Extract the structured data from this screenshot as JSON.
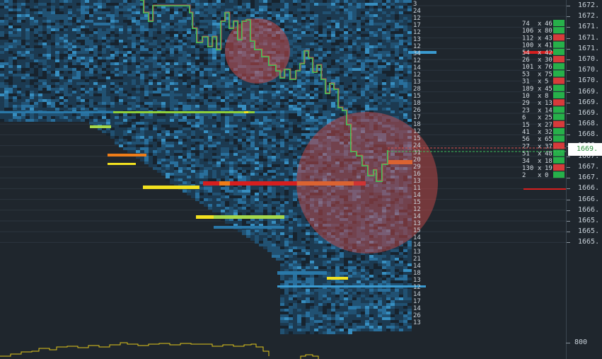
{
  "price_axis": {
    "labels": [
      "1672.",
      "1672.",
      "1671.",
      "1671.",
      "1671.",
      "1670.",
      "1670.",
      "1670.",
      "1669.",
      "1669.",
      "1669.",
      "1668.",
      "1668.",
      "1668.",
      "1667.",
      "1667.",
      "1667.",
      "1666.",
      "1666.",
      "1666.",
      "1665.",
      "1665.",
      "1665."
    ],
    "last_price": "1669.",
    "volume_label": "800"
  },
  "ladder": {
    "rows": [
      {
        "ask": "74",
        "x": "x",
        "bid": "46"
      },
      {
        "ask": "106",
        "x": "x",
        "bid": "80"
      },
      {
        "ask": "112",
        "x": "x",
        "bid": "43"
      },
      {
        "ask": "100",
        "x": "x",
        "bid": "41"
      },
      {
        "ask": "54",
        "x": "x",
        "bid": "42"
      },
      {
        "ask": "26",
        "x": "x",
        "bid": "30"
      },
      {
        "ask": "101",
        "x": "x",
        "bid": "76"
      },
      {
        "ask": "53",
        "x": "x",
        "bid": "75"
      },
      {
        "ask": "31",
        "x": "x",
        "bid": "5"
      },
      {
        "ask": "189",
        "x": "x",
        "bid": "45"
      },
      {
        "ask": "10",
        "x": "x",
        "bid": "8"
      },
      {
        "ask": "29",
        "x": "x",
        "bid": "13"
      },
      {
        "ask": "23",
        "x": "x",
        "bid": "14"
      },
      {
        "ask": "6",
        "x": "x",
        "bid": "25"
      },
      {
        "ask": "15",
        "x": "x",
        "bid": "27"
      },
      {
        "ask": "41",
        "x": "x",
        "bid": "32"
      },
      {
        "ask": "56",
        "x": "x",
        "bid": "65"
      },
      {
        "ask": "27",
        "x": "x",
        "bid": "37"
      },
      {
        "ask": "51",
        "x": "x",
        "bid": "48"
      },
      {
        "ask": "34",
        "x": "x",
        "bid": "18"
      },
      {
        "ask": "130",
        "x": "x",
        "bid": "19"
      },
      {
        "ask": "2",
        "x": "x",
        "bid": "0"
      }
    ]
  },
  "depth_column": {
    "values": [
      "3",
      "24",
      "12",
      "17",
      "12",
      "13",
      "12",
      "34",
      "12",
      "14",
      "12",
      "13",
      "28",
      "15",
      "18",
      "26",
      "17",
      "18",
      "12",
      "15",
      "24",
      "31",
      "20",
      "29",
      "16",
      "13",
      "11",
      "14",
      "15",
      "12",
      "14",
      "13",
      "15",
      "14",
      "14",
      "13",
      "21",
      "14",
      "18",
      "13",
      "12",
      "14",
      "17",
      "14",
      "26",
      "13"
    ]
  },
  "colors": {
    "background": "#1f262d",
    "heat_low": "#1c3d55",
    "heat_mid": "#2a78a8",
    "heat_high_yellow": "#f2e11f",
    "heat_orange": "#ef7d18",
    "heat_red": "#d61f1f",
    "candle_up": "#3bbf5a",
    "candle_down": "#d9534f",
    "ask_green": "#27b04a",
    "bid_red": "#d63b3b",
    "volume_line": "#e0c51a"
  }
}
